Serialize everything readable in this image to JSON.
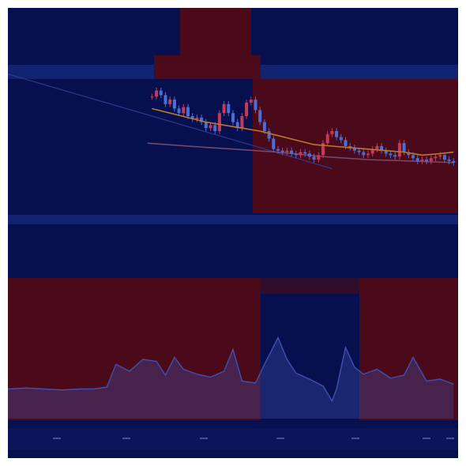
{
  "colors": {
    "background": "#07104e",
    "band_blue": "#142776",
    "band_dark": "#0b155a",
    "overlay_red": "#4f0b16",
    "candle_up": "#c43a5a",
    "candle_down": "#4b6dd6",
    "ma_fast": "#b87a2a",
    "ma_slow": "#7a4a6a",
    "trend": "#2a3a8e",
    "osc_line": "#4050b0",
    "tick": "#6d74c9"
  },
  "chart_data": [
    {
      "type": "line",
      "panel": "price",
      "title": "",
      "xlabel": "",
      "ylabel": "",
      "x_range": [
        0,
        100
      ],
      "ylim": [
        0,
        100
      ],
      "grid": false,
      "series": [
        {
          "kind": "candles",
          "x": [
            32,
            33,
            34,
            35,
            36,
            37,
            38,
            39,
            40,
            41,
            42,
            43,
            44,
            45,
            46,
            47,
            48,
            49,
            50,
            51,
            52,
            53,
            54,
            55,
            56,
            57,
            58,
            59,
            60,
            61,
            62,
            63,
            64,
            65,
            66,
            67,
            68,
            69,
            70,
            71,
            72,
            73,
            74,
            75,
            76,
            77,
            78,
            79,
            80,
            81,
            82,
            83,
            84,
            85,
            86,
            87,
            88,
            89,
            90,
            91,
            92,
            93,
            94,
            95,
            96,
            97,
            98,
            99
          ],
          "close": [
            83,
            87,
            84,
            78,
            81,
            75,
            72,
            76,
            70,
            68,
            69,
            66,
            62,
            64,
            60,
            72,
            78,
            72,
            66,
            62,
            70,
            79,
            81,
            74,
            66,
            60,
            55,
            48,
            47,
            46,
            47,
            45,
            44,
            46,
            45,
            43,
            41,
            44,
            52,
            58,
            60,
            56,
            54,
            50,
            49,
            47,
            46,
            44,
            45,
            48,
            50,
            47,
            45,
            44,
            43,
            52,
            46,
            44,
            42,
            40,
            41,
            40,
            42,
            43,
            44,
            41,
            40,
            39
          ]
        },
        {
          "name": "",
          "kind": "ma_fast",
          "x": [
            32,
            36,
            40,
            44,
            48,
            52,
            56,
            60,
            64,
            68,
            72,
            76,
            80,
            84,
            88,
            92,
            96,
            99
          ],
          "y": [
            75,
            72,
            69,
            66,
            64,
            62,
            60,
            57,
            54,
            51,
            50,
            49,
            48,
            47,
            46,
            44,
            45,
            46
          ]
        },
        {
          "name": "",
          "kind": "ma_slow",
          "x": [
            31,
            40,
            50,
            60,
            70,
            80,
            90,
            99
          ],
          "y": [
            52,
            50,
            48,
            46,
            43,
            41,
            40,
            39
          ]
        },
        {
          "name": "",
          "kind": "trendline",
          "x": [
            0,
            72
          ],
          "y": [
            98,
            35
          ]
        }
      ]
    },
    {
      "type": "line",
      "panel": "oscillator",
      "title": "",
      "xlabel": "",
      "ylabel": "",
      "x_range": [
        0,
        100
      ],
      "ylim": [
        0,
        100
      ],
      "grid": false,
      "series": [
        {
          "name": "",
          "x": [
            0,
            4,
            8,
            12,
            16,
            19,
            22,
            24,
            27,
            30,
            33,
            35,
            37,
            39,
            42,
            45,
            48,
            50,
            52,
            55,
            57,
            60,
            62,
            64,
            67,
            70,
            72,
            73,
            75,
            77,
            79,
            82,
            85,
            88,
            90,
            93,
            96,
            99
          ],
          "y": [
            30,
            31,
            30,
            29,
            30,
            30,
            32,
            55,
            48,
            60,
            58,
            44,
            62,
            50,
            45,
            42,
            48,
            70,
            38,
            36,
            55,
            82,
            60,
            46,
            40,
            33,
            18,
            30,
            72,
            52,
            45,
            50,
            41,
            44,
            62,
            38,
            40,
            35
          ]
        }
      ],
      "x_ticks": [
        "",
        "",
        "",
        "",
        "",
        "",
        ""
      ]
    }
  ]
}
